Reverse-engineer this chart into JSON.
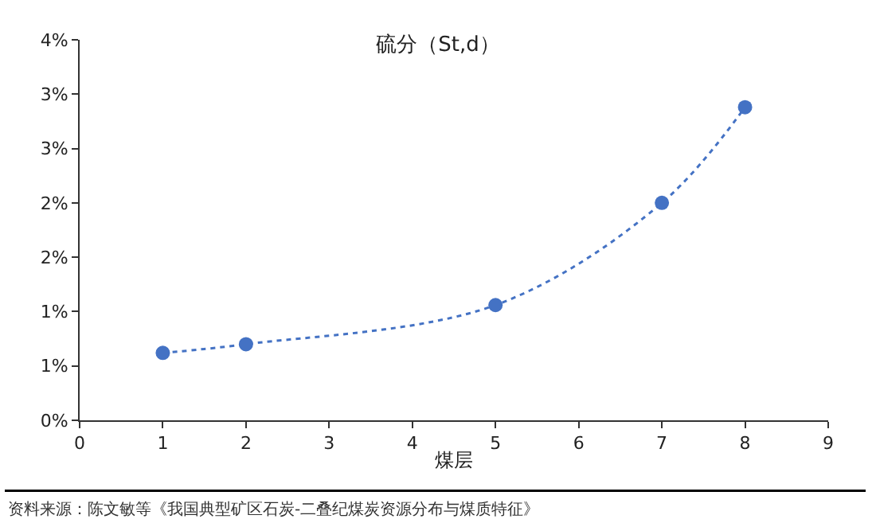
{
  "chart_data": {
    "type": "line",
    "title": "硫分（St,d）",
    "xlabel": "煤层",
    "x": [
      1,
      2,
      5,
      7,
      8
    ],
    "series": [
      {
        "color": "#4472c4",
        "values": [
          0.62,
          0.7,
          1.06,
          2.0,
          2.88
        ]
      }
    ],
    "marker": "circle",
    "line_style": "dotted",
    "xlim": [
      0,
      9
    ],
    "xticks": [
      0,
      1,
      2,
      3,
      4,
      5,
      6,
      7,
      8,
      9
    ],
    "ylim": [
      0,
      3.5
    ],
    "yticks": [
      {
        "value": 0,
        "label": "0%"
      },
      {
        "value": 0.5,
        "label": "1%"
      },
      {
        "value": 1.0,
        "label": "1%"
      },
      {
        "value": 1.5,
        "label": "2%"
      },
      {
        "value": 2.0,
        "label": "2%"
      },
      {
        "value": 2.5,
        "label": "3%"
      },
      {
        "value": 3.0,
        "label": "3%"
      },
      {
        "value": 3.5,
        "label": "4%"
      }
    ],
    "annotations": [
      "资料来源：陈文敏等《我国典型矿区石炭-二叠纪煤炭资源分布与煤质特征》"
    ]
  }
}
